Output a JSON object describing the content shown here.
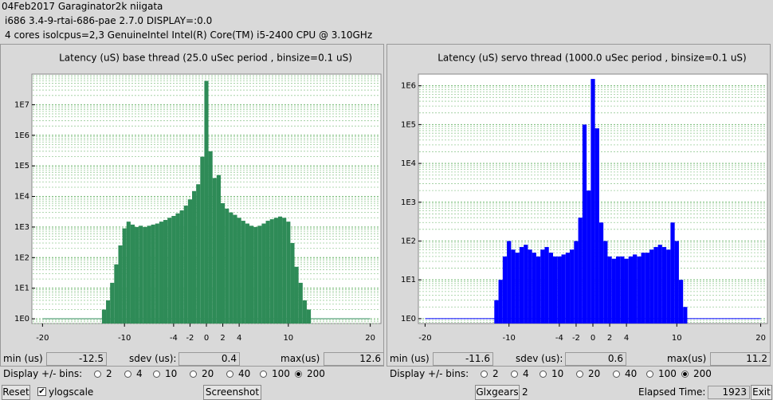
{
  "header": {
    "line1": "04Feb2017 Garaginator2k niigata",
    "line2": "i686  3.4-9-rtai-686-pae  2.7.0  DISPLAY=:0.0",
    "line3": "4 cores  isolcpus=2,3   GenuineIntel  Intel(R) Core(TM) i5-2400 CPU @ 3.10GHz"
  },
  "panels": [
    {
      "chart_data": {
        "type": "bar",
        "title": "Latency (uS) base thread (25.0 uSec period , binsize=0.1 uS)",
        "color": "#2e8b57",
        "log_y": true,
        "grid": true,
        "x": [
          -12.5,
          -12,
          -11.5,
          -11,
          -10.5,
          -10,
          -9.5,
          -9,
          -8.5,
          -8,
          -7.5,
          -7,
          -6.5,
          -6,
          -5.5,
          -5,
          -4.5,
          -4,
          -3.5,
          -3,
          -2.5,
          -2,
          -1.5,
          -1,
          -0.5,
          0,
          0.5,
          1,
          1.5,
          2,
          2.5,
          3,
          3.5,
          4,
          4.5,
          5,
          5.5,
          6,
          6.5,
          7,
          7.5,
          8,
          8.5,
          9,
          9.5,
          10,
          10.5,
          11,
          11.5,
          12,
          12.5
        ],
        "values": [
          2,
          4,
          15,
          60,
          250,
          900,
          1500,
          1200,
          1000,
          1100,
          1000,
          1100,
          1200,
          1300,
          1500,
          1700,
          2000,
          2300,
          2800,
          3500,
          5000,
          8000,
          15000,
          25000,
          200000,
          60000000,
          300000,
          40000,
          50000,
          6000,
          4000,
          3000,
          2500,
          2000,
          1600,
          1300,
          1100,
          1000,
          1100,
          1300,
          1600,
          1800,
          2000,
          2200,
          2000,
          1500,
          300,
          50,
          15,
          4,
          2
        ],
        "xlim": [
          -21.3,
          21.3
        ],
        "xticks": [
          -20,
          -10,
          -4,
          -2,
          0,
          2,
          4,
          10,
          20
        ],
        "ylim": [
          0.7,
          100000000
        ],
        "yticks": [
          {
            "value": 1,
            "label": "1E0"
          },
          {
            "value": 10,
            "label": "1E1"
          },
          {
            "value": 100,
            "label": "1E2"
          },
          {
            "value": 1000,
            "label": "1E3"
          },
          {
            "value": 10000,
            "label": "1E4"
          },
          {
            "value": 100000,
            "label": "1E5"
          },
          {
            "value": 1000000,
            "label": "1E6"
          },
          {
            "value": 10000000,
            "label": "1E7"
          }
        ]
      },
      "stats": {
        "min_label": "min (us)",
        "min": -12.5,
        "sdev_label": "sdev (us):",
        "sdev": 0.4,
        "max_label": "max(us)",
        "max": 12.6
      },
      "bins": {
        "label": "Display +/- bins:",
        "options": [
          "2",
          "4",
          "10",
          "20",
          "40",
          "100",
          "200"
        ],
        "selected": 6
      }
    },
    {
      "chart_data": {
        "type": "bar",
        "title": "Latency (uS) servo thread (1000.0 uSec period , binsize=0.1 uS)",
        "color": "#0000ff",
        "log_y": true,
        "grid": true,
        "x": [
          -11.5,
          -11,
          -10.5,
          -10,
          -9.5,
          -9,
          -8.5,
          -8,
          -7.5,
          -7,
          -6.5,
          -6,
          -5.5,
          -5,
          -4.5,
          -4,
          -3.5,
          -3,
          -2.5,
          -2,
          -1.5,
          -1,
          -0.5,
          0,
          0.5,
          1,
          1.5,
          2,
          2.5,
          3,
          3.5,
          4,
          4.5,
          5,
          5.5,
          6,
          6.5,
          7,
          7.5,
          8,
          8.5,
          9,
          9.5,
          10,
          10.5,
          11
        ],
        "values": [
          3,
          10,
          40,
          100,
          60,
          50,
          70,
          80,
          60,
          50,
          40,
          60,
          70,
          50,
          40,
          40,
          45,
          50,
          60,
          100,
          400,
          100000,
          2000,
          1500000,
          80000,
          300,
          100,
          40,
          35,
          40,
          40,
          35,
          40,
          45,
          40,
          50,
          50,
          60,
          70,
          80,
          70,
          60,
          300,
          100,
          10,
          2
        ],
        "xlim": [
          -20.8,
          20.8
        ],
        "xticks": [
          -20,
          -10,
          -4,
          -2,
          0,
          2,
          4,
          10,
          20
        ],
        "ylim": [
          0.75,
          2000000
        ],
        "yticks": [
          {
            "value": 1,
            "label": "1E0"
          },
          {
            "value": 10,
            "label": "1E1"
          },
          {
            "value": 100,
            "label": "1E2"
          },
          {
            "value": 1000,
            "label": "1E3"
          },
          {
            "value": 10000,
            "label": "1E4"
          },
          {
            "value": 100000,
            "label": "1E5"
          },
          {
            "value": 1000000,
            "label": "1E6"
          }
        ]
      },
      "stats": {
        "min_label": "min (us)",
        "min": -11.6,
        "sdev_label": "sdev (us):",
        "sdev": 0.6,
        "max_label": "max(us)",
        "max": 11.2
      },
      "bins": {
        "label": "Display +/- bins:",
        "options": [
          "2",
          "4",
          "10",
          "20",
          "40",
          "100",
          "200"
        ],
        "selected": 6
      }
    }
  ],
  "footer": {
    "reset": "Reset",
    "ylogscale": "ylogscale",
    "ylogscale_checked": true,
    "screenshot": "Screenshot",
    "glxgears": "Glxgears",
    "glxgears_count": 2,
    "elapsed_label": "Elapsed Time:",
    "elapsed": 1923,
    "exit": "Exit"
  }
}
